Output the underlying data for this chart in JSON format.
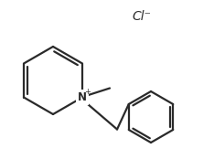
{
  "bg_color": "#ffffff",
  "line_color": "#2a2a2a",
  "line_width": 1.6,
  "figsize": [
    2.34,
    1.74
  ],
  "dpi": 100,
  "cl_text": "Cl⁻"
}
